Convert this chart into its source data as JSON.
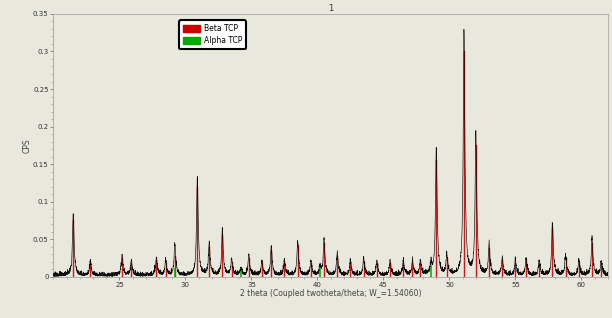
{
  "title": "1",
  "xlabel": "2 theta (Coupled twotheta/theta; W_=1.54060)",
  "ylabel": "CPS",
  "xlim": [
    20,
    62
  ],
  "ylim": [
    0,
    0.35
  ],
  "xticks": [
    25,
    30,
    35,
    40,
    45,
    50,
    55,
    60
  ],
  "ytick_positions": [
    0.0,
    0.05,
    0.1,
    0.15,
    0.2,
    0.25,
    0.3,
    0.35
  ],
  "ytick_labels": [
    "0",
    "0.05",
    "0.1",
    "0.15",
    "0.2",
    "0.25",
    "0.3",
    "0.35"
  ],
  "legend_entries": [
    "Beta TCP",
    "Alpha TCP"
  ],
  "legend_colors": [
    "#cc0000",
    "#00aa00"
  ],
  "background_color": "#e8e8dc",
  "beta_tcp_peaks": [
    [
      21.5,
      0.075
    ],
    [
      22.8,
      0.018
    ],
    [
      25.2,
      0.025
    ],
    [
      25.9,
      0.018
    ],
    [
      27.8,
      0.022
    ],
    [
      28.5,
      0.018
    ],
    [
      29.2,
      0.028
    ],
    [
      30.9,
      0.12
    ],
    [
      31.8,
      0.04
    ],
    [
      32.8,
      0.055
    ],
    [
      33.5,
      0.02
    ],
    [
      34.8,
      0.025
    ],
    [
      35.8,
      0.018
    ],
    [
      36.5,
      0.035
    ],
    [
      37.5,
      0.018
    ],
    [
      38.5,
      0.042
    ],
    [
      39.5,
      0.018
    ],
    [
      40.5,
      0.045
    ],
    [
      41.5,
      0.028
    ],
    [
      42.5,
      0.018
    ],
    [
      43.5,
      0.02
    ],
    [
      44.5,
      0.018
    ],
    [
      45.5,
      0.018
    ],
    [
      46.5,
      0.018
    ],
    [
      47.2,
      0.018
    ],
    [
      47.8,
      0.018
    ],
    [
      49.0,
      0.155
    ],
    [
      49.8,
      0.025
    ],
    [
      51.1,
      0.3
    ],
    [
      52.0,
      0.175
    ],
    [
      53.0,
      0.038
    ],
    [
      54.0,
      0.022
    ],
    [
      55.0,
      0.018
    ],
    [
      55.8,
      0.022
    ],
    [
      56.8,
      0.018
    ],
    [
      57.8,
      0.065
    ],
    [
      58.8,
      0.025
    ],
    [
      59.8,
      0.018
    ],
    [
      60.8,
      0.045
    ],
    [
      61.5,
      0.018
    ]
  ],
  "alpha_tcp_peaks": [
    [
      29.2,
      0.01
    ],
    [
      34.2,
      0.01
    ],
    [
      40.2,
      0.01
    ],
    [
      48.6,
      0.014
    ]
  ],
  "noise_seed": 123,
  "noise_level": 0.0022,
  "base_level": 0.0015
}
